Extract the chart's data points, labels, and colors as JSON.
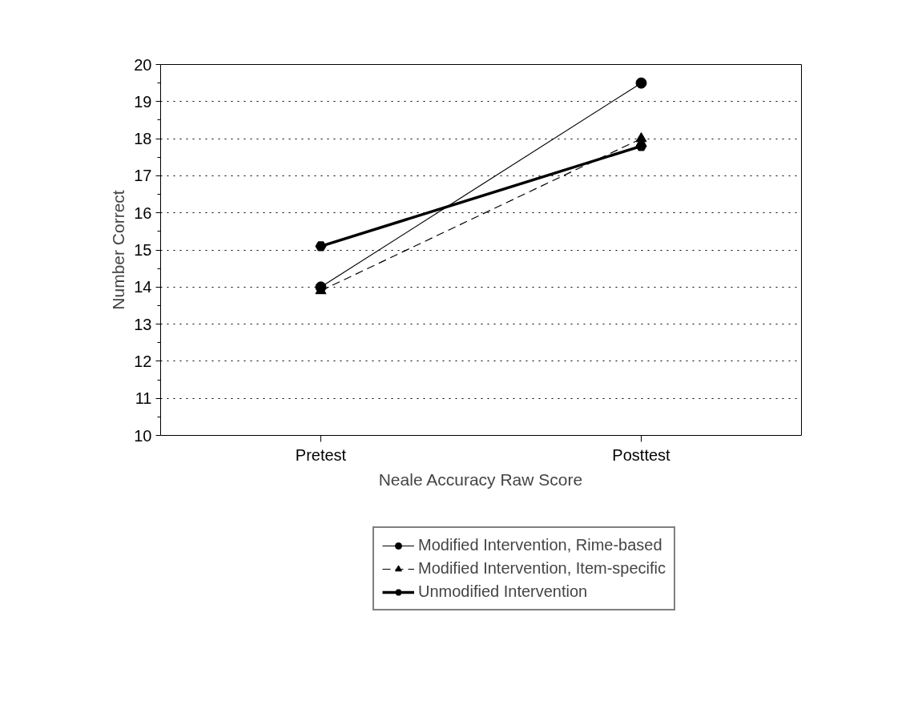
{
  "chart_data": {
    "type": "line",
    "xlabel": "Neale Accuracy Raw Score",
    "ylabel": "Number Correct",
    "categories": [
      "Pretest",
      "Posttest"
    ],
    "series": [
      {
        "name": "Modified Intervention, Rime-based",
        "color": "#000000",
        "values": [
          14.0,
          19.5
        ],
        "marker": "circle",
        "line_style": "solid"
      },
      {
        "name": "Modified Intervention, Item-specific",
        "color": "#000000",
        "values": [
          13.9,
          18.0
        ],
        "marker": "triangle",
        "line_style": "dashed"
      },
      {
        "name": "Unmodified Intervention",
        "color": "#000000",
        "values": [
          15.1,
          17.8
        ],
        "marker": "cross",
        "line_style": "solid"
      }
    ],
    "ylim": [
      10,
      20
    ],
    "yticks": [
      10,
      11,
      12,
      13,
      14,
      15,
      16,
      17,
      18,
      19,
      20
    ],
    "grid": "y",
    "legend": "bottom"
  }
}
